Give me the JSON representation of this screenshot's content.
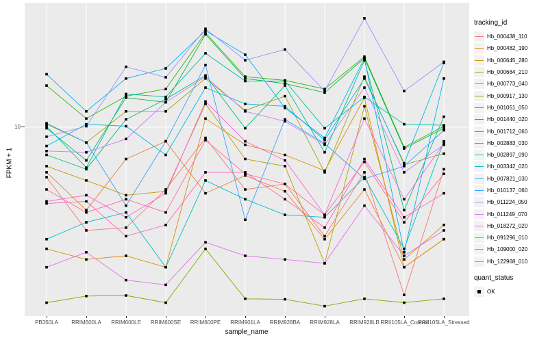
{
  "figure": {
    "y_axis": {
      "title": "FPKM + 1",
      "tick_label": "10"
    },
    "x_axis": {
      "title": "sample_name"
    },
    "legend": {
      "tracking_title": "tracking_id",
      "quant_title": "quant_status",
      "quant_items": [
        {
          "label": "OK",
          "shape": "black-square"
        }
      ]
    },
    "panel_bg": "#EBEBEB",
    "gridline_color": "#FFFFFF",
    "tick_text_color": "#4D4D4D"
  },
  "chart_data": {
    "type": "line",
    "title": "",
    "xlabel": "sample_name",
    "ylabel": "FPKM + 1",
    "y_scale": "log10",
    "ylim": [
      1.55,
      34
    ],
    "grid": "major-horizontal-and-vertical-white",
    "legend_position": "right",
    "point_shape": "filled-square",
    "point_color": "#000000",
    "categories": [
      "PB350LA",
      "RRIM600LA",
      "RRIM600LE",
      "RRIM600SE",
      "RRIM600PE",
      "RRIM901LA",
      "RRIM928BA",
      "RRIM928LA",
      "RRIM928LB",
      "RRII105LA_Control",
      "RRII105LA_Stressed"
    ],
    "series": [
      {
        "name": "Hb_000438_110",
        "color": "#F8766D",
        "values": [
          6.1,
          3.6,
          3.7,
          5.4,
          9.0,
          5.4,
          5.7,
          3.4,
          6.4,
          1.9,
          6.6
        ]
      },
      {
        "name": "Hb_000482_190",
        "color": "#EA8331",
        "values": [
          6.4,
          4.4,
          7.3,
          8.7,
          5.2,
          6.2,
          5.3,
          3.3,
          5.4,
          2.5,
          3.3
        ]
      },
      {
        "name": "Hb_000645_280",
        "color": "#D89000",
        "values": [
          3.0,
          2.7,
          2.8,
          2.5,
          10.9,
          8.4,
          7.6,
          6.5,
          13.4,
          2.5,
          3.3
        ]
      },
      {
        "name": "Hb_000684_210",
        "color": "#C09B00",
        "values": [
          6.8,
          5.9,
          5.1,
          5.3,
          12.6,
          7.3,
          6.8,
          2.6,
          12.3,
          2.7,
          3.8
        ]
      },
      {
        "name": "Hb_000773_040",
        "color": "#A3A500",
        "values": [
          10.3,
          8.6,
          11.7,
          11.7,
          16.2,
          11.8,
          13.6,
          6.4,
          16.5,
          6.9,
          7.7
        ]
      },
      {
        "name": "Hb_000917_130",
        "color": "#7CAE00",
        "values": [
          1.76,
          1.88,
          1.89,
          1.76,
          3.0,
          1.83,
          1.82,
          1.7,
          1.83,
          1.76,
          1.83
        ]
      },
      {
        "name": "Hb_001051_050",
        "color": "#39B600",
        "values": [
          15.1,
          10.9,
          13.6,
          14.6,
          25.5,
          16.5,
          15.9,
          14.6,
          20.1,
          8.2,
          10.1
        ]
      },
      {
        "name": "Hb_001440_020",
        "color": "#00BB4E",
        "values": [
          9.9,
          7.2,
          13.4,
          12.8,
          25.1,
          16.2,
          15.4,
          14.1,
          19.8,
          8.1,
          9.9
        ]
      },
      {
        "name": "Hb_001712_060",
        "color": "#00BF7D",
        "values": [
          7.6,
          6.6,
          10.8,
          13.2,
          16.7,
          9.9,
          15.1,
          7.8,
          19.4,
          4.4,
          11.1
        ]
      },
      {
        "name": "Hb_002883_030",
        "color": "#00C1A3",
        "values": [
          10.1,
          6.7,
          13.9,
          13.5,
          20.8,
          15.8,
          15.8,
          9.9,
          13.5,
          10.3,
          10.2
        ]
      },
      {
        "name": "Hb_002897_090",
        "color": "#00BFC4",
        "values": [
          3.3,
          3.9,
          4.3,
          2.5,
          5.9,
          4.9,
          4.2,
          4.1,
          6.1,
          3.0,
          8.7
        ]
      },
      {
        "name": "Hb_003342_020",
        "color": "#00BAE0",
        "values": [
          8.3,
          10.3,
          10.1,
          7.6,
          14.8,
          12.6,
          12.3,
          8.8,
          16.2,
          7.0,
          18.9
        ]
      },
      {
        "name": "Hb_007821_030",
        "color": "#00B0F6",
        "values": [
          16.9,
          11.7,
          16.2,
          17.9,
          26.0,
          20.5,
          12.1,
          9.0,
          19.8,
          2.9,
          16.2
        ]
      },
      {
        "name": "Hb_010137_060",
        "color": "#35A2FF",
        "values": [
          10.4,
          8.6,
          4.6,
          8.7,
          18.5,
          4.0,
          10.8,
          8.5,
          6.0,
          6.8,
          9.7
        ]
      },
      {
        "name": "Hb_011224_050",
        "color": "#9590FF",
        "values": [
          9.1,
          10.1,
          18.2,
          16.4,
          26.5,
          19.4,
          21.6,
          14.3,
          29.4,
          14.3,
          19.1
        ]
      },
      {
        "name": "Hb_011249_070",
        "color": "#C77CFF",
        "values": [
          7.9,
          7.8,
          8.9,
          12.8,
          16.5,
          11.7,
          10.6,
          8.4,
          14.8,
          6.4,
          8.4
        ]
      },
      {
        "name": "Hb_018272_020",
        "color": "#E76BF3",
        "values": [
          2.5,
          2.9,
          2.2,
          2.1,
          3.2,
          2.8,
          2.7,
          2.6,
          4.6,
          2.8,
          3.6
        ]
      },
      {
        "name": "Hb_091296_010",
        "color": "#FA62DB",
        "values": [
          4.8,
          5.1,
          4.1,
          5.2,
          12.9,
          8.7,
          7.2,
          4.2,
          10.9,
          4.9,
          8.5
        ]
      },
      {
        "name": "Hb_109000_020",
        "color": "#FF62BC",
        "values": [
          4.7,
          4.8,
          3.4,
          3.8,
          6.4,
          6.4,
          4.9,
          3.7,
          7.3,
          4.1,
          5.2
        ]
      },
      {
        "name": "Hb_122968_010",
        "color": "#FF6A98",
        "values": [
          5.4,
          4.3,
          4.9,
          4.3,
          8.8,
          6.3,
          5.7,
          4.2,
          7.1,
          3.9,
          6.3
        ]
      }
    ]
  }
}
